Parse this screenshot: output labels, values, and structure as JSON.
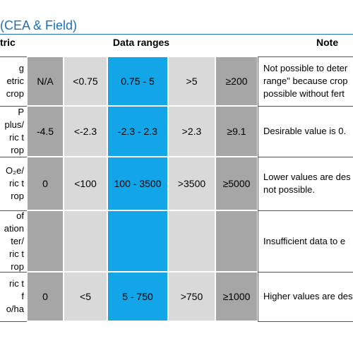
{
  "title": "(CEA & Field)",
  "header": {
    "metric": "tric",
    "ranges": "Data ranges",
    "notes": "Note"
  },
  "rows": [
    {
      "metric": [
        "g",
        "etric",
        "crop"
      ],
      "values": [
        "N/A",
        "<0.75",
        "0.75 - 5",
        ">5",
        "≥200"
      ],
      "note": [
        "Not possible to deter",
        "range\" because crop",
        "possible without fert"
      ]
    },
    {
      "metric": [
        "P",
        "plus/",
        "ric t",
        "rop"
      ],
      "values": [
        "-4.5",
        "<-2.3",
        "-2.3 - 2.3",
        ">2.3",
        "≥9.1"
      ],
      "note": [
        "Desirable value is 0."
      ]
    },
    {
      "metric": [
        "O₂e/",
        "ric t",
        "rop"
      ],
      "values": [
        "0",
        "<100",
        "100 - 3500",
        ">3500",
        "≥5000"
      ],
      "note": [
        "Lower values are des",
        "not possible."
      ]
    },
    {
      "metric": [
        "of",
        "ation",
        "ter/",
        "ric t",
        "rop"
      ],
      "note": [
        "Insufficient data to e"
      ]
    },
    {
      "metric": [
        "ric t",
        "f",
        "o/ha"
      ],
      "values": [
        "0",
        "<5",
        "5 - 750",
        ">750",
        "≥1000"
      ],
      "note": [
        "Higher values are des"
      ]
    }
  ]
}
